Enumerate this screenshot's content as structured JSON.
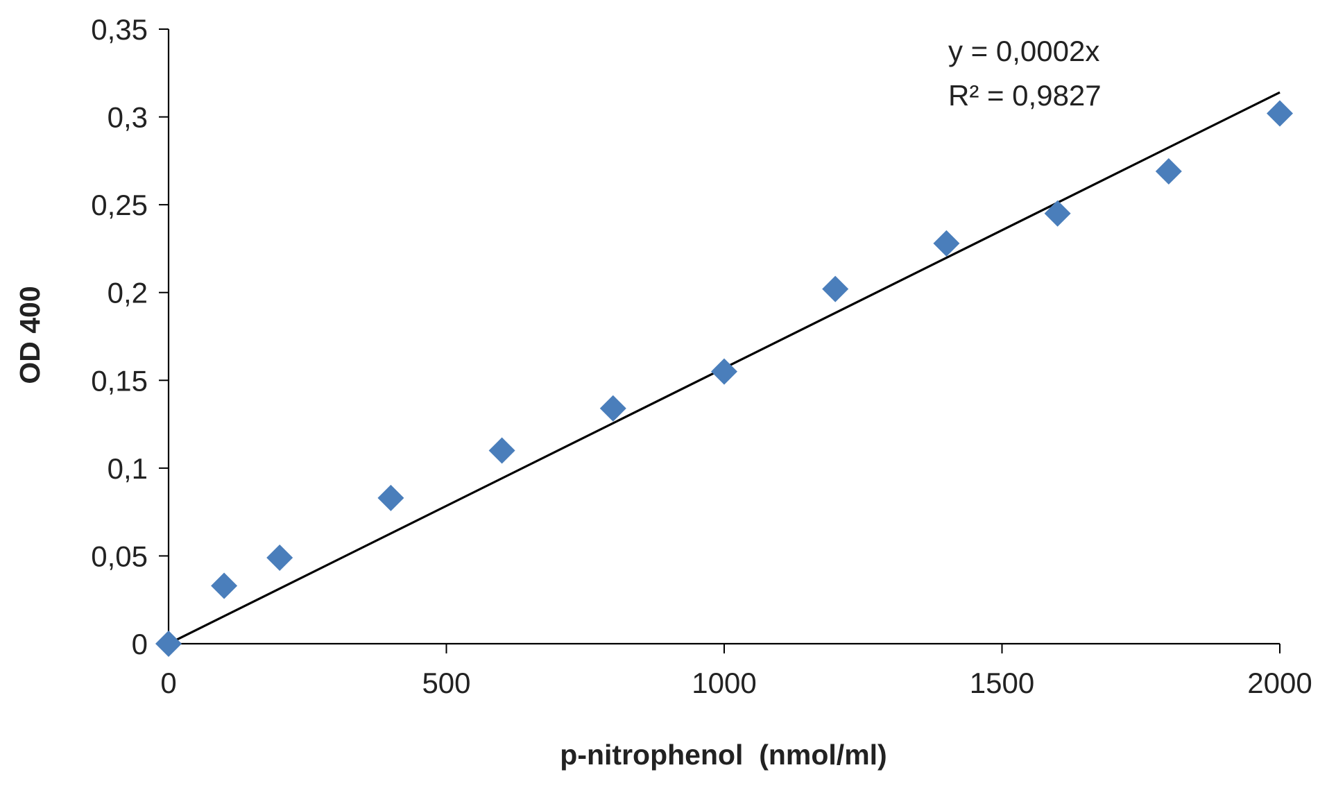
{
  "chart_data": {
    "type": "scatter",
    "title": "",
    "xlabel": "p-nitrophenol  (nmol/ml)",
    "ylabel": "OD 400",
    "xlim": [
      0,
      2000
    ],
    "ylim": [
      0,
      0.35
    ],
    "x_ticks": [
      0,
      500,
      1000,
      1500,
      2000
    ],
    "x_tick_labels": [
      "0",
      "500",
      "1000",
      "1500",
      "2000"
    ],
    "y_ticks": [
      0,
      0.05,
      0.1,
      0.15,
      0.2,
      0.25,
      0.3,
      0.35
    ],
    "y_tick_labels": [
      "0",
      "0,05",
      "0,1",
      "0,15",
      "0,2",
      "0,25",
      "0,3",
      "0,35"
    ],
    "grid": false,
    "legend": "none",
    "marker": "diamond",
    "colors": {
      "points": "#4a7ebb",
      "trendline": "#000000",
      "axis": "#000000",
      "text": "#222222"
    },
    "series": [
      {
        "x": [
          0,
          100,
          200,
          400,
          600,
          800,
          1000,
          1200,
          1400,
          1600,
          1800,
          2000
        ],
        "y": [
          0,
          0.033,
          0.049,
          0.083,
          0.11,
          0.134,
          0.155,
          0.202,
          0.228,
          0.245,
          0.269,
          0.302
        ]
      }
    ],
    "trendline": {
      "type": "linear",
      "slope": 0.000157,
      "intercept": 0,
      "x_range": [
        0,
        2000
      ]
    },
    "annotations": {
      "equation": "y = 0,0002x",
      "r_squared": "R² = 0,9827"
    }
  }
}
